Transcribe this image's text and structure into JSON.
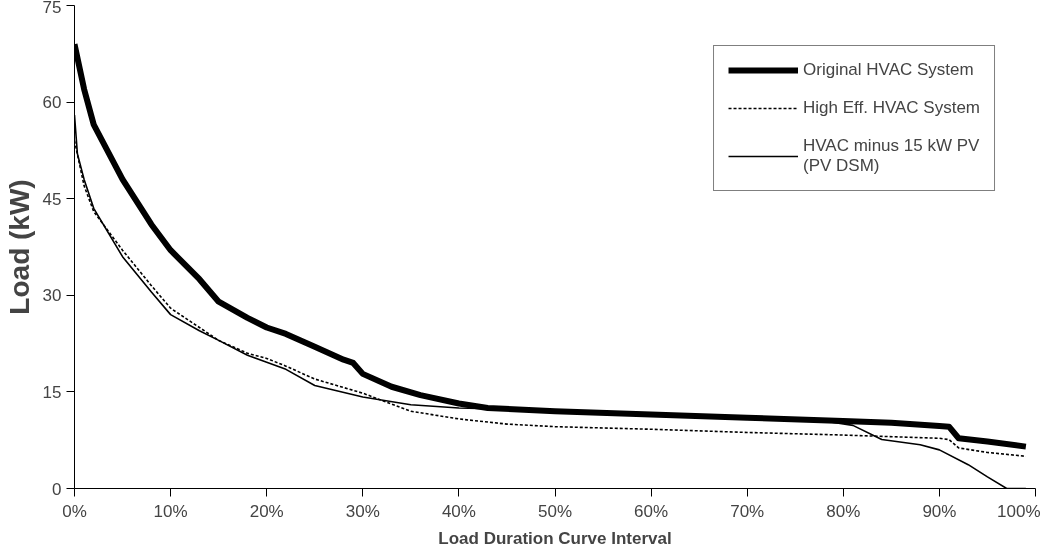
{
  "chart_data": {
    "type": "line",
    "xlabel": "Load Duration Curve Interval",
    "ylabel": "Load (kW)",
    "xlim": [
      0,
      100
    ],
    "ylim": [
      0,
      75
    ],
    "xticks": [
      {
        "value": 0,
        "label": "0%"
      },
      {
        "value": 10,
        "label": "10%"
      },
      {
        "value": 20,
        "label": "20%"
      },
      {
        "value": 30,
        "label": "30%"
      },
      {
        "value": 40,
        "label": "40%"
      },
      {
        "value": 50,
        "label": "50%"
      },
      {
        "value": 60,
        "label": "60%"
      },
      {
        "value": 70,
        "label": "70%"
      },
      {
        "value": 80,
        "label": "80%"
      },
      {
        "value": 90,
        "label": "90%"
      },
      {
        "value": 100,
        "label": "100%"
      }
    ],
    "yticks": [
      0,
      15,
      30,
      45,
      60,
      75
    ],
    "grid": false,
    "legend": "top right",
    "series": [
      {
        "name": "Original HVAC System",
        "color": "#000000",
        "line_style": "solid",
        "x": [
          0,
          1,
          2,
          5,
          8,
          10,
          13,
          15,
          18,
          20,
          22,
          25,
          28,
          29,
          30,
          33,
          36,
          40,
          43,
          50,
          60,
          70,
          80,
          85,
          90,
          91,
          92,
          95,
          99
        ],
        "values": [
          69,
          62,
          56.5,
          48,
          41,
          37,
          32.5,
          29,
          26.5,
          25,
          24,
          22,
          20,
          19.5,
          17.8,
          15.8,
          14.5,
          13.2,
          12.5,
          12,
          11.5,
          11,
          10.5,
          10.2,
          9.7,
          9.6,
          7.8,
          7.3,
          6.5
        ]
      },
      {
        "name": "High Eff. HVAC System",
        "color": "#000000",
        "line_style": "dotted",
        "x": [
          0,
          1,
          2,
          5,
          8,
          10,
          13,
          15,
          18,
          20,
          22,
          25,
          30,
          35,
          40,
          45,
          50,
          60,
          70,
          80,
          90,
          91,
          92,
          95,
          99
        ],
        "values": [
          54,
          47,
          43,
          37,
          31.5,
          28,
          25,
          23,
          21,
          20.2,
          19,
          17,
          14.8,
          12,
          10.8,
          10,
          9.6,
          9.2,
          8.7,
          8.3,
          7.8,
          7.6,
          6.3,
          5.6,
          5
        ]
      },
      {
        "name": "HVAC minus 15 kW PV\n(PV DSM)",
        "color": "#000000",
        "line_style": "solid",
        "x": [
          0,
          0.3,
          1,
          2,
          5,
          8,
          10,
          13,
          15,
          18,
          20,
          22,
          25,
          30,
          35,
          40,
          45,
          50,
          60,
          70,
          78,
          81,
          84,
          88,
          90,
          93,
          95,
          97,
          99
        ],
        "values": [
          58,
          52,
          48,
          43.5,
          36,
          30.5,
          27,
          24.5,
          23,
          20.7,
          19.6,
          18.5,
          16,
          14.2,
          13,
          12.5,
          12.3,
          12,
          11.5,
          11,
          10.5,
          9.8,
          7.6,
          6.8,
          6,
          3.7,
          1.8,
          0,
          0
        ]
      }
    ]
  }
}
